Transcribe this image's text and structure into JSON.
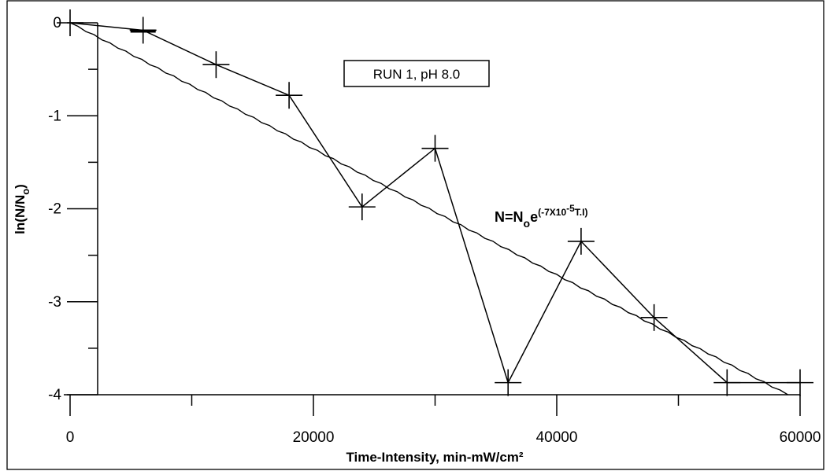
{
  "chart_data": {
    "type": "line",
    "title": "",
    "xlabel": "Time-Intensity, min-mW/cm²",
    "ylabel": {
      "main": "ln(N/N",
      "sub": "o",
      "close": ")"
    },
    "xlim": [
      0,
      60000
    ],
    "ylim": [
      -4,
      0
    ],
    "x_ticks": [
      0,
      20000,
      40000,
      60000
    ],
    "x_tick_labels": [
      "0",
      "20000",
      "40000",
      "60000"
    ],
    "x_minor_ticks": [
      10000,
      30000,
      50000
    ],
    "y_ticks": [
      0,
      -1,
      -2,
      -3,
      -4
    ],
    "y_tick_labels": [
      "0",
      "-1",
      "-2",
      "-3",
      "-4"
    ],
    "y_minor_ticks": [
      -0.5,
      -1.5,
      -2.5,
      -3.5
    ],
    "grid": false,
    "legend": {
      "label": "RUN 1, pH 8.0",
      "position": "top-center"
    },
    "series": [
      {
        "marker": "plus",
        "x": [
          0,
          6000,
          12000,
          18000,
          24000,
          30000,
          36000,
          42000,
          48000,
          54000,
          60000
        ],
        "y": [
          0,
          -0.08,
          -0.45,
          -0.78,
          -1.98,
          -1.35,
          -3.87,
          -2.35,
          -3.17,
          -3.87,
          -3.87
        ]
      },
      {
        "marker": "none",
        "fit": "exponential",
        "x": [
          0,
          59000
        ],
        "y": [
          0,
          -4.0
        ]
      }
    ],
    "annotations": [
      {
        "equation_parts": {
          "n": "N=N",
          "sub": "o",
          "e": "e",
          "exp": "(-7X10",
          "exp_pow": "-5",
          "exp_tail": "T.I)"
        },
        "x": 35000,
        "y": -2.1
      }
    ]
  }
}
